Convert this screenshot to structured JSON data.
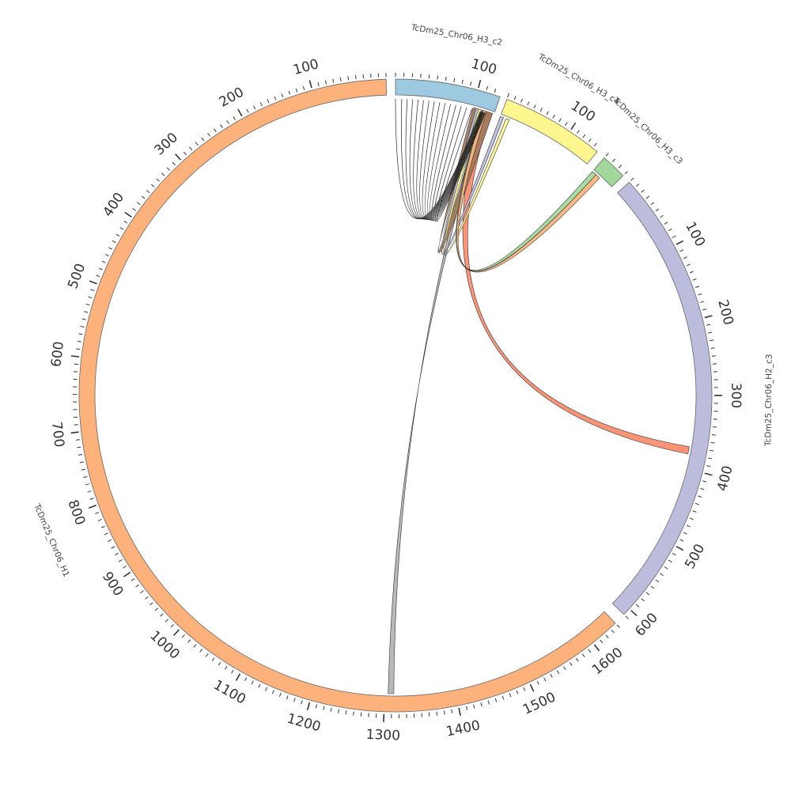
{
  "segments": [
    {
      "id": "H1",
      "label": "TcDm25_Chr06_H1",
      "length": 1640,
      "color": "#fdb27c",
      "ticks": [
        "100",
        "200",
        "300",
        "400",
        "500",
        "600",
        "700",
        "800",
        "900",
        "1000",
        "1100",
        "1200",
        "1300",
        "1400",
        "1500",
        "1600"
      ]
    },
    {
      "id": "H3_c2",
      "label": "TcDm25_Chr06_H3_c2",
      "length": 128,
      "color": "#9ecae1",
      "ticks": [
        "100"
      ]
    },
    {
      "id": "H3_c4",
      "label": "TcDm25_Chr06_H3_c4",
      "length": 148,
      "color": "#fff68f",
      "ticks": [
        "100"
      ]
    },
    {
      "id": "H3_c3",
      "label": "TcDm25_Chr06_H3_c3",
      "length": 30,
      "color": "#a1d99b",
      "ticks": []
    },
    {
      "id": "H2_c3",
      "label": "TcDm25_Chr06_H2_c3",
      "length": 610,
      "color": "#bcbddc",
      "ticks": [
        "100",
        "200",
        "300",
        "400",
        "500",
        "600"
      ]
    }
  ],
  "links": [
    {
      "a_seg": "H1",
      "a_start": 1305,
      "a_end": 1313,
      "b_seg": "H3_c2",
      "b_start": 112,
      "b_end": 118,
      "color": "#b3b3b3"
    },
    {
      "a_seg": "H3_c2",
      "a_start": 113,
      "a_end": 124,
      "b_seg": "H2_c3",
      "b_start": 370,
      "b_end": 380,
      "color": "#fb8a6a"
    },
    {
      "a_seg": "H3_c2",
      "a_start": 115,
      "a_end": 126,
      "b_seg": "H3_c2",
      "b_start": 100,
      "b_end": 104,
      "color": "#a0785a"
    },
    {
      "a_seg": "H3_c4",
      "a_start": 0,
      "a_end": 5,
      "b_seg": "H3_c2",
      "b_start": 104,
      "b_end": 108,
      "color": "#bcbddc"
    },
    {
      "a_seg": "H3_c4",
      "a_start": 9,
      "a_end": 14,
      "b_seg": "H3_c2",
      "b_start": 107,
      "b_end": 111,
      "color": "#fff68f"
    },
    {
      "a_seg": "H3_c3",
      "a_start": 0,
      "a_end": 6,
      "b_seg": "H3_c2",
      "b_start": 112,
      "b_end": 117,
      "color": "#a1d99b"
    },
    {
      "a_seg": "H3_c3",
      "a_start": 6,
      "a_end": 12,
      "b_seg": "H3_c2",
      "b_start": 113,
      "b_end": 118,
      "color": "#fdb27c"
    }
  ],
  "line_links": [
    {
      "seg": "H3_c2",
      "from": 0,
      "to": 110
    },
    {
      "seg": "H3_c2",
      "from": 8,
      "to": 111
    },
    {
      "seg": "H3_c2",
      "from": 15,
      "to": 111
    },
    {
      "seg": "H3_c2",
      "from": 22,
      "to": 112
    },
    {
      "seg": "H3_c2",
      "from": 29,
      "to": 112
    },
    {
      "seg": "H3_c2",
      "from": 36,
      "to": 113
    },
    {
      "seg": "H3_c2",
      "from": 43,
      "to": 113
    },
    {
      "seg": "H3_c2",
      "from": 50,
      "to": 114
    },
    {
      "seg": "H3_c2",
      "from": 57,
      "to": 114
    },
    {
      "seg": "H3_c2",
      "from": 64,
      "to": 115
    },
    {
      "seg": "H3_c2",
      "from": 71,
      "to": 115
    },
    {
      "seg": "H3_c2",
      "from": 78,
      "to": 116
    },
    {
      "seg": "H3_c2",
      "from": 85,
      "to": 116
    },
    {
      "seg": "H3_c2",
      "from": 92,
      "to": 117
    },
    {
      "seg": "H3_c2",
      "from": 99,
      "to": 117
    }
  ]
}
